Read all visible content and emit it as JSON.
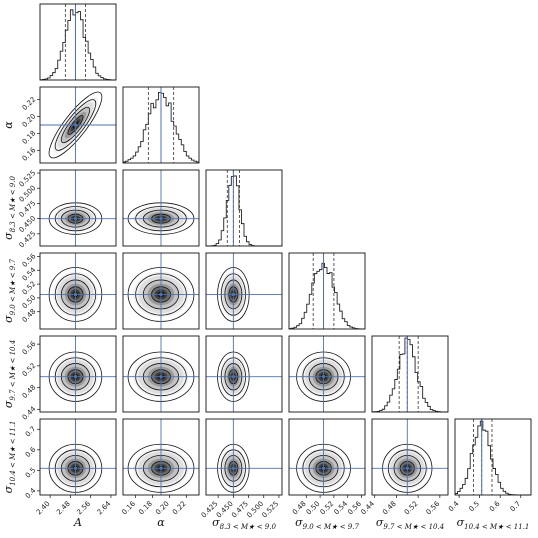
{
  "chart_data": {
    "type": "corner",
    "parameters": [
      {
        "name": "A",
        "label": "A",
        "truth": 2.5,
        "median": 2.5,
        "q16": 2.46,
        "q84": 2.54,
        "range": [
          2.36,
          2.66
        ],
        "ticks": [
          "2.40",
          "2.48",
          "2.56",
          "2.64"
        ]
      },
      {
        "name": "alpha",
        "label": "α",
        "truth": 0.19,
        "median": 0.19,
        "q16": 0.175,
        "q84": 0.205,
        "range": [
          0.145,
          0.235
        ],
        "ticks": [
          "0.16",
          "0.18",
          "0.20",
          "0.22"
        ]
      },
      {
        "name": "sigma_8.3_9.0",
        "label": "σ8.3<M★<9.0",
        "label_main": "σ",
        "label_sub": "8.3 < M★ < 9.0",
        "truth": 0.45,
        "median": 0.45,
        "q16": 0.44,
        "q84": 0.46,
        "range": [
          0.405,
          0.53
        ],
        "ticks": [
          "0.425",
          "0.450",
          "0.475",
          "0.500",
          "0.525"
        ]
      },
      {
        "name": "sigma_9.0_9.7",
        "label": "σ9.0<M★<9.7",
        "label_main": "σ",
        "label_sub": "9.0 < M★ < 9.7",
        "truth": 0.505,
        "median": 0.505,
        "q16": 0.49,
        "q84": 0.52,
        "range": [
          0.455,
          0.565
        ],
        "ticks": [
          "0.48",
          "0.50",
          "0.52",
          "0.54",
          "0.56"
        ]
      },
      {
        "name": "sigma_9.7_10.4",
        "label": "σ9.7<M★<10.4",
        "label_main": "σ",
        "label_sub": "9.7 < M★ < 10.4",
        "truth": 0.5,
        "median": 0.5,
        "q16": 0.485,
        "q84": 0.52,
        "range": [
          0.435,
          0.575
        ],
        "ticks": [
          "0.44",
          "0.48",
          "0.52",
          "0.56"
        ]
      },
      {
        "name": "sigma_10.4_11.1",
        "label": "σ10.4<M★<11.1",
        "label_main": "σ",
        "label_sub": "10.4 < M★ < 11.1",
        "truth": 0.51,
        "median": 0.51,
        "q16": 0.47,
        "q84": 0.56,
        "range": [
          0.38,
          0.75
        ],
        "ticks": [
          "0.4",
          "0.5",
          "0.6",
          "0.7"
        ]
      }
    ],
    "correlations": [
      [
        0,
        1,
        0.85
      ]
    ],
    "truth_line_color": "#4c72b0",
    "quantile_line_style": "dashed"
  }
}
